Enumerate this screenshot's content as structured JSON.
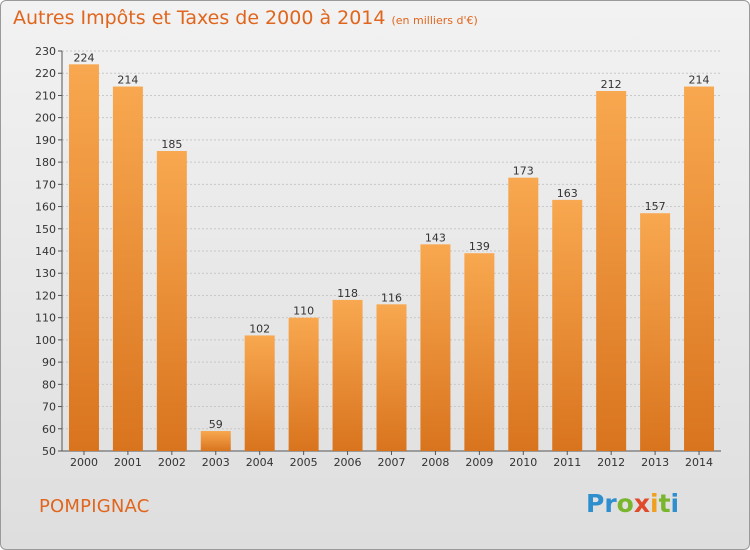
{
  "title": "Autres Impôts et Taxes de 2000 à 2014",
  "title_unit": "(en milliers d'€)",
  "commune": "POMPIGNAC",
  "logo": {
    "text": "Proxiti",
    "letters": [
      {
        "c": "P",
        "color": "#2f8fce"
      },
      {
        "c": "r",
        "color": "#2f8fce"
      },
      {
        "c": "o",
        "color": "#7ab52e"
      },
      {
        "c": "x",
        "color": "#e04a2a"
      },
      {
        "c": "i",
        "color": "#f0a020"
      },
      {
        "c": "t",
        "color": "#7ab52e"
      },
      {
        "c": "i",
        "color": "#2f8fce"
      }
    ]
  },
  "colors": {
    "bar_light": "#f8a850",
    "bar_dark": "#d9741e",
    "accent": "#e0661e"
  },
  "chart_data": {
    "type": "bar",
    "title": "Autres Impôts et Taxes de 2000 à 2014",
    "categories": [
      "2000",
      "2001",
      "2002",
      "2003",
      "2004",
      "2005",
      "2006",
      "2007",
      "2008",
      "2009",
      "2010",
      "2011",
      "2012",
      "2013",
      "2014"
    ],
    "values": [
      224,
      214,
      185,
      59,
      102,
      110,
      118,
      116,
      143,
      139,
      173,
      163,
      212,
      157,
      214
    ],
    "ylim": [
      50,
      230
    ],
    "yticks": [
      50,
      60,
      70,
      80,
      90,
      100,
      110,
      120,
      130,
      140,
      150,
      160,
      170,
      180,
      190,
      200,
      210,
      220,
      230
    ],
    "grid": true,
    "data_labels": true
  }
}
